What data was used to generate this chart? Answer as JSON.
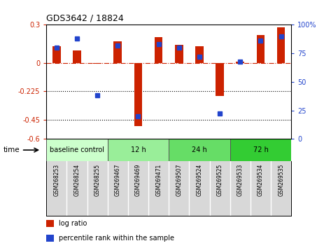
{
  "title": "GDS3642 / 18824",
  "samples": [
    "GSM268253",
    "GSM268254",
    "GSM268255",
    "GSM269467",
    "GSM269469",
    "GSM269471",
    "GSM269507",
    "GSM269524",
    "GSM269525",
    "GSM269533",
    "GSM269534",
    "GSM269535"
  ],
  "log_ratio": [
    0.13,
    0.1,
    -0.01,
    0.17,
    -0.5,
    0.2,
    0.14,
    0.13,
    -0.26,
    0.01,
    0.22,
    0.28
  ],
  "percentile_rank": [
    80,
    88,
    38,
    82,
    20,
    83,
    80,
    72,
    22,
    68,
    86,
    90
  ],
  "ylim": [
    -0.6,
    0.3
  ],
  "yticks_left": [
    -0.6,
    -0.45,
    -0.225,
    0.0,
    0.3
  ],
  "ytick_labels_left": [
    "-0.6",
    "-0.45",
    "-0.225",
    "0",
    "0.3"
  ],
  "yticks_right": [
    0,
    25,
    50,
    75,
    100
  ],
  "ytick_labels_right": [
    "0",
    "25",
    "50",
    "75",
    "100%"
  ],
  "hlines": [
    -0.45,
    -0.225
  ],
  "dashed_hline": 0.0,
  "groups": [
    {
      "label": "baseline control",
      "start": 0,
      "end": 3,
      "color": "#ccffcc"
    },
    {
      "label": "12 h",
      "start": 3,
      "end": 6,
      "color": "#99ee99"
    },
    {
      "label": "24 h",
      "start": 6,
      "end": 9,
      "color": "#66dd66"
    },
    {
      "label": "72 h",
      "start": 9,
      "end": 12,
      "color": "#33cc33"
    }
  ],
  "bar_color_red": "#cc2200",
  "bar_color_blue": "#2244cc",
  "time_label": "time",
  "legend_red": "log ratio",
  "legend_blue": "percentile rank within the sample",
  "bg_color": "#ffffff",
  "plot_bg": "#ffffff",
  "sample_label_bg": "#d8d8d8",
  "bar_width": 0.4
}
